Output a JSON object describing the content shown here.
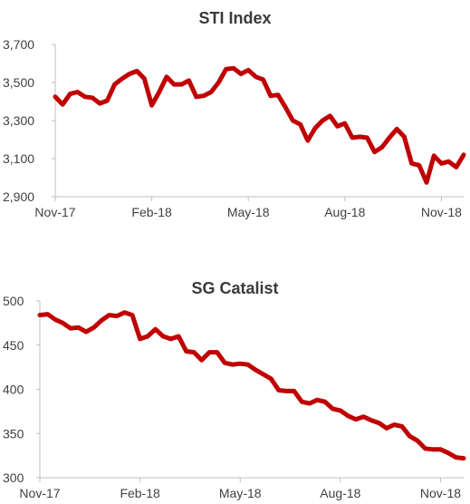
{
  "colors": {
    "line": "#c00000",
    "axis": "#bfbfbf",
    "text": "#404040"
  },
  "chart_data": [
    {
      "type": "line",
      "title": "STI Index",
      "xlabel": "",
      "ylabel": "",
      "ylim": [
        2900,
        3700
      ],
      "yticks": [
        2900,
        3100,
        3300,
        3500,
        3700
      ],
      "ytick_labels": [
        "2,900",
        "3,100",
        "3,300",
        "3,500",
        "3,700"
      ],
      "xlim": [
        0,
        55
      ],
      "xticks": [
        0,
        13,
        26,
        39,
        52
      ],
      "xtick_labels": [
        "Nov-17",
        "Feb-18",
        "May-18",
        "Aug-18",
        "Nov-18"
      ],
      "grid": false,
      "series": [
        {
          "values": [
            3425,
            3385,
            3440,
            3450,
            3425,
            3420,
            3390,
            3405,
            3490,
            3520,
            3545,
            3560,
            3520,
            3380,
            3450,
            3530,
            3490,
            3490,
            3510,
            3425,
            3430,
            3450,
            3500,
            3570,
            3575,
            3545,
            3565,
            3530,
            3515,
            3430,
            3435,
            3370,
            3300,
            3280,
            3195,
            3260,
            3300,
            3325,
            3270,
            3285,
            3210,
            3215,
            3210,
            3135,
            3160,
            3210,
            3255,
            3215,
            3075,
            3065,
            2975,
            3115,
            3075,
            3085,
            3055,
            3120
          ]
        }
      ]
    },
    {
      "type": "line",
      "title": "SG Catalist",
      "xlabel": "",
      "ylabel": "",
      "ylim": [
        300,
        500
      ],
      "yticks": [
        300,
        350,
        400,
        450,
        500
      ],
      "ytick_labels": [
        "300",
        "350",
        "400",
        "450",
        "500"
      ],
      "xlim": [
        0,
        55
      ],
      "xticks": [
        0,
        13,
        26,
        39,
        52
      ],
      "xtick_labels": [
        "Nov-17",
        "Feb-18",
        "May-18",
        "Aug-18",
        "Nov-18"
      ],
      "grid": false,
      "series": [
        {
          "values": [
            484,
            485,
            479,
            475,
            469,
            470,
            465,
            470,
            478,
            484,
            483,
            487,
            484,
            457,
            460,
            468,
            460,
            457,
            460,
            443,
            442,
            433,
            442,
            442,
            430,
            428,
            429,
            428,
            422,
            417,
            412,
            399,
            398,
            398,
            386,
            384,
            388,
            386,
            378,
            376,
            370,
            366,
            369,
            365,
            362,
            356,
            360,
            358,
            347,
            342,
            333,
            332,
            332,
            328,
            323,
            322
          ]
        }
      ]
    }
  ]
}
